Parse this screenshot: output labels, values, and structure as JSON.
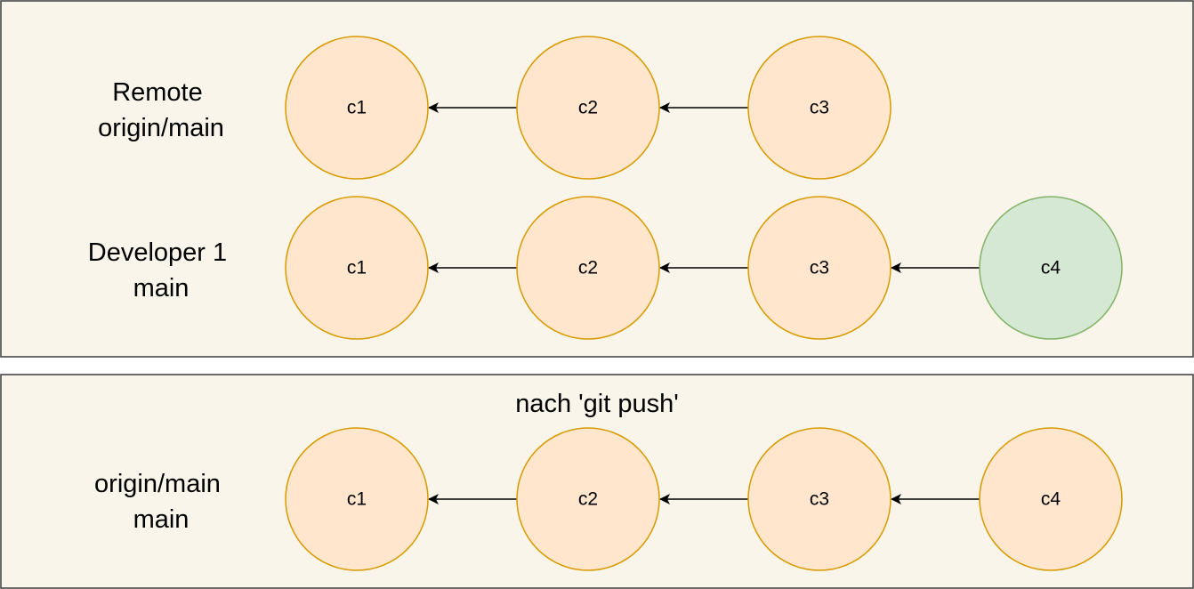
{
  "colors": {
    "panel_fill": "#f9f5ea",
    "commit_fill": "#ffe6cc",
    "commit_stroke": "#d79b00",
    "new_commit_fill": "#d5e8d4",
    "new_commit_stroke": "#82b366"
  },
  "top_panel": {
    "rows": [
      {
        "label_line1": "Remote",
        "label_line2": "origin/main",
        "commits": [
          {
            "id": "c1",
            "state": "existing"
          },
          {
            "id": "c2",
            "state": "existing"
          },
          {
            "id": "c3",
            "state": "existing"
          }
        ]
      },
      {
        "label_line1": "Developer 1",
        "label_line2": "main",
        "commits": [
          {
            "id": "c1",
            "state": "existing"
          },
          {
            "id": "c2",
            "state": "existing"
          },
          {
            "id": "c3",
            "state": "existing"
          },
          {
            "id": "c4",
            "state": "new"
          }
        ]
      }
    ]
  },
  "bottom_panel": {
    "title": "nach 'git push'",
    "rows": [
      {
        "label_line1": "origin/main",
        "label_line2": "main",
        "commits": [
          {
            "id": "c1",
            "state": "existing"
          },
          {
            "id": "c2",
            "state": "existing"
          },
          {
            "id": "c3",
            "state": "existing"
          },
          {
            "id": "c4",
            "state": "existing"
          }
        ]
      }
    ]
  }
}
